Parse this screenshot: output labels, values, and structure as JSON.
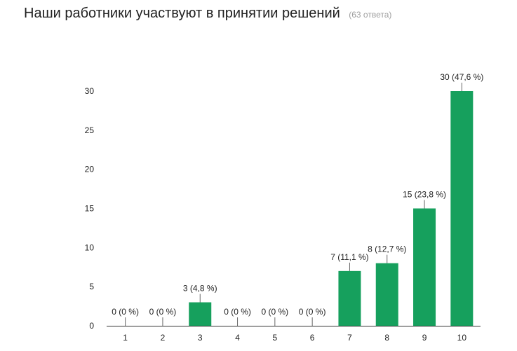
{
  "header": {
    "title": "Наши работники участвуют в принятии решений",
    "subtitle": "(63 ответа)"
  },
  "colors": {
    "bar": "#16a05d",
    "axis": "#333333",
    "text": "#222222"
  },
  "chart_data": {
    "type": "bar",
    "title": "Наши работники участвуют в принятии решений",
    "subtitle": "(63 ответа)",
    "xlabel": "",
    "ylabel": "",
    "categories": [
      "1",
      "2",
      "3",
      "4",
      "5",
      "6",
      "7",
      "8",
      "9",
      "10"
    ],
    "values": [
      0,
      0,
      3,
      0,
      0,
      0,
      7,
      8,
      15,
      30
    ],
    "data_labels": [
      "0 (0 %)",
      "0 (0 %)",
      "3 (4,8 %)",
      "0 (0 %)",
      "0 (0 %)",
      "0 (0 %)",
      "7 (11,1 %)",
      "8 (12,7 %)",
      "15 (23,8 %)",
      "30 (47,6 %)"
    ],
    "yticks": [
      0,
      5,
      10,
      15,
      20,
      25,
      30
    ],
    "ylim": [
      0,
      30
    ],
    "grid": false,
    "legend": "none"
  }
}
